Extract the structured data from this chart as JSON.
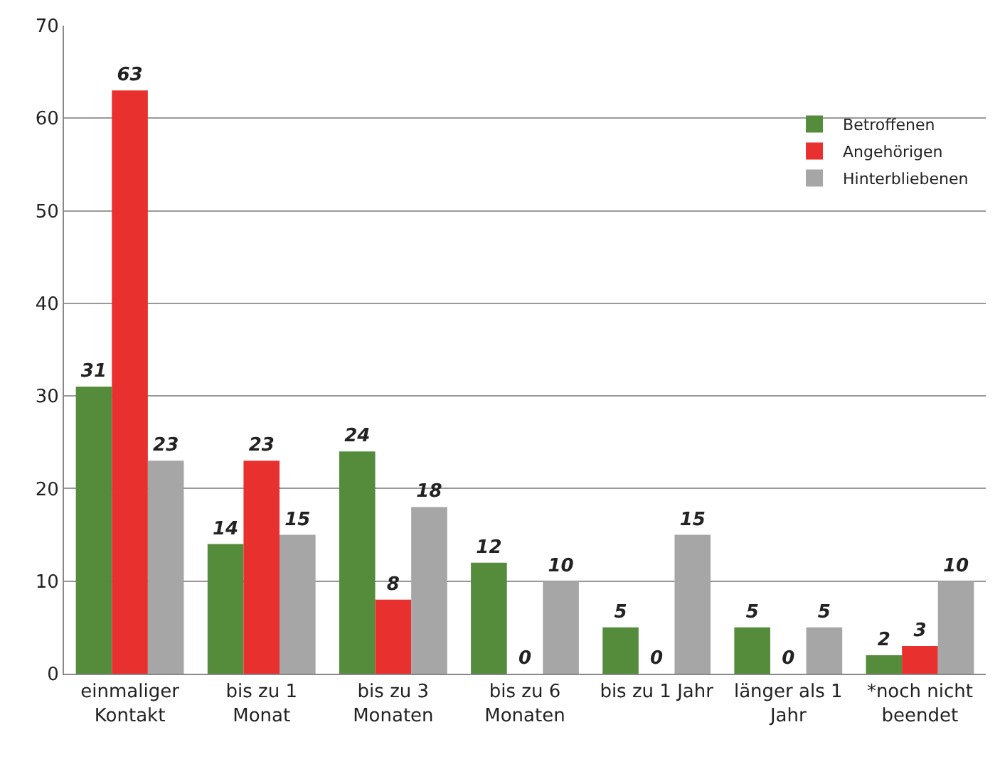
{
  "chart_data": {
    "type": "bar",
    "categories": [
      "einmaliger Kontakt",
      "bis zu 1 Monat",
      "bis zu 3 Monaten",
      "bis zu 6 Monaten",
      "bis zu 1 Jahr",
      "länger als 1 Jahr",
      "*noch nicht beendet"
    ],
    "series": [
      {
        "name": "Betroffenen",
        "color": "#548c3c",
        "values": [
          31,
          14,
          24,
          12,
          5,
          5,
          2
        ]
      },
      {
        "name": "Angehörigen",
        "color": "#e8312f",
        "values": [
          63,
          23,
          8,
          0,
          0,
          0,
          3
        ]
      },
      {
        "name": "Hinterbliebenen",
        "color": "#a6a6a6",
        "values": [
          23,
          15,
          18,
          10,
          15,
          5,
          10
        ]
      }
    ],
    "ylim": [
      0,
      70
    ],
    "yticks": [
      0,
      10,
      20,
      30,
      40,
      50,
      60,
      70
    ],
    "grid": "y",
    "legend": "top right",
    "data_labels": true
  }
}
